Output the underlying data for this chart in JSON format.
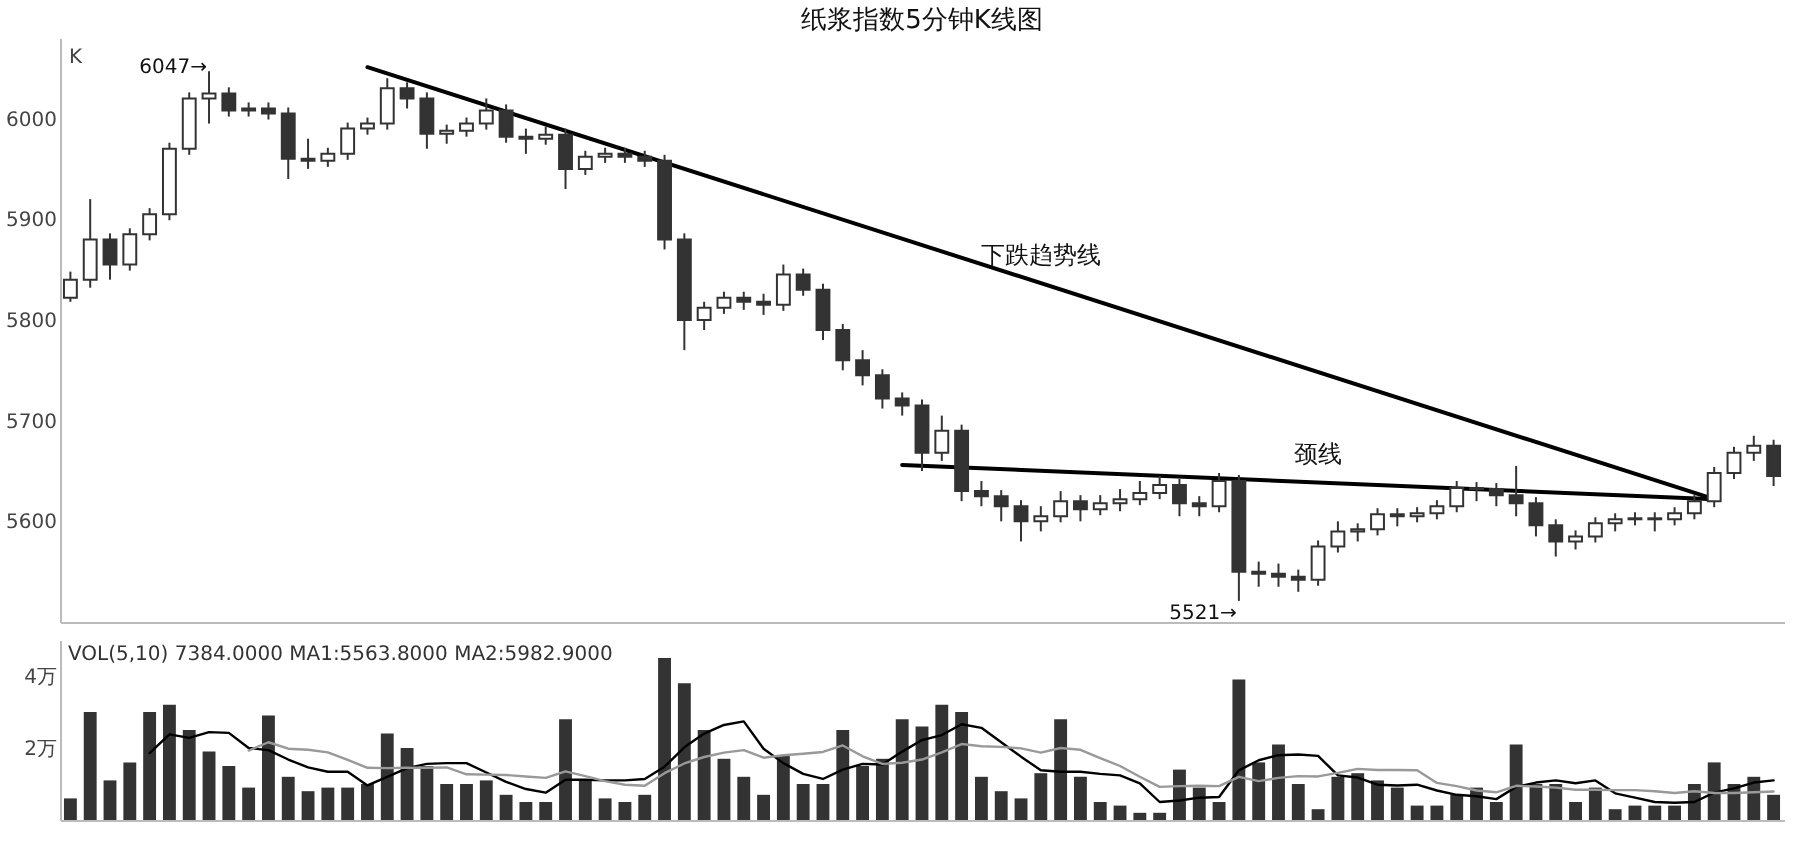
{
  "chart_data": [
    {
      "type": "candlestick",
      "title": "纸浆指数5分钟K线图",
      "ylabel": "K",
      "color": "#333333",
      "tick_labels": "y",
      "categories": [
        null,
        null,
        null,
        null,
        null,
        null,
        null,
        null,
        null,
        null,
        null,
        null,
        null,
        null,
        null,
        null,
        null,
        null,
        null,
        null,
        null,
        null,
        null,
        null,
        null,
        null,
        null,
        null,
        null,
        null,
        null,
        null,
        null,
        null,
        null,
        null,
        null,
        null,
        null,
        null,
        null,
        null,
        null,
        null,
        null,
        null,
        null,
        null,
        null,
        null,
        null,
        null,
        null,
        null,
        null,
        null,
        null,
        null,
        null,
        null,
        null,
        null,
        null,
        null,
        null,
        null,
        null,
        null,
        null,
        null,
        null,
        null,
        null,
        null,
        null,
        null,
        null,
        null,
        null,
        null,
        null,
        null,
        null,
        null,
        null,
        null,
        null
      ],
      "ylim": [
        5500,
        6080
      ],
      "yticks": [
        5600,
        5700,
        5800,
        5900,
        6000
      ],
      "ohlc": [
        [
          5822,
          5848,
          5818,
          5840
        ],
        [
          5840,
          5920,
          5832,
          5880
        ],
        [
          5880,
          5886,
          5840,
          5855
        ],
        [
          5855,
          5891,
          5849,
          5885
        ],
        [
          5885,
          5911,
          5879,
          5905
        ],
        [
          5905,
          5976,
          5899,
          5970
        ],
        [
          5970,
          6026,
          5964,
          6020
        ],
        [
          6020,
          6047,
          5995,
          6025
        ],
        [
          6025,
          6031,
          6002,
          6008
        ],
        [
          6008,
          6016,
          6002,
          6010
        ],
        [
          6010,
          6016,
          5999,
          6005
        ],
        [
          6005,
          6011,
          5940,
          5960
        ],
        [
          5960,
          5980,
          5950,
          5958
        ],
        [
          5958,
          5971,
          5952,
          5965
        ],
        [
          5965,
          5996,
          5959,
          5990
        ],
        [
          5990,
          6001,
          5984,
          5995
        ],
        [
          5995,
          6040,
          5989,
          6030
        ],
        [
          6030,
          6036,
          6010,
          6020
        ],
        [
          6020,
          6026,
          5970,
          5985
        ],
        [
          5985,
          5994,
          5975,
          5988
        ],
        [
          5988,
          6001,
          5982,
          5995
        ],
        [
          5995,
          6020,
          5989,
          6008
        ],
        [
          6008,
          6014,
          5976,
          5982
        ],
        [
          5982,
          5990,
          5965,
          5980
        ],
        [
          5980,
          5992,
          5974,
          5984
        ],
        [
          5984,
          5990,
          5930,
          5950
        ],
        [
          5950,
          5968,
          5944,
          5962
        ],
        [
          5962,
          5971,
          5956,
          5965
        ],
        [
          5965,
          5971,
          5956,
          5962
        ],
        [
          5962,
          5968,
          5952,
          5958
        ],
        [
          5958,
          5964,
          5870,
          5880
        ],
        [
          5880,
          5886,
          5770,
          5800
        ],
        [
          5800,
          5818,
          5790,
          5812
        ],
        [
          5812,
          5828,
          5806,
          5822
        ],
        [
          5822,
          5828,
          5810,
          5818
        ],
        [
          5818,
          5826,
          5805,
          5815
        ],
        [
          5815,
          5855,
          5809,
          5845
        ],
        [
          5845,
          5851,
          5824,
          5830
        ],
        [
          5830,
          5836,
          5780,
          5790
        ],
        [
          5790,
          5796,
          5750,
          5760
        ],
        [
          5760,
          5770,
          5735,
          5745
        ],
        [
          5745,
          5751,
          5712,
          5722
        ],
        [
          5722,
          5728,
          5705,
          5715
        ],
        [
          5715,
          5721,
          5650,
          5668
        ],
        [
          5668,
          5705,
          5660,
          5690
        ],
        [
          5690,
          5696,
          5620,
          5630
        ],
        [
          5630,
          5640,
          5615,
          5625
        ],
        [
          5625,
          5631,
          5600,
          5615
        ],
        [
          5615,
          5621,
          5580,
          5600
        ],
        [
          5600,
          5615,
          5590,
          5605
        ],
        [
          5605,
          5630,
          5599,
          5620
        ],
        [
          5620,
          5626,
          5600,
          5612
        ],
        [
          5612,
          5626,
          5606,
          5618
        ],
        [
          5618,
          5632,
          5610,
          5622
        ],
        [
          5622,
          5640,
          5616,
          5628
        ],
        [
          5628,
          5645,
          5622,
          5636
        ],
        [
          5636,
          5642,
          5605,
          5618
        ],
        [
          5618,
          5625,
          5605,
          5615
        ],
        [
          5615,
          5648,
          5609,
          5640
        ],
        [
          5640,
          5646,
          5521,
          5550
        ],
        [
          5550,
          5560,
          5535,
          5548
        ],
        [
          5548,
          5558,
          5535,
          5545
        ],
        [
          5545,
          5552,
          5530,
          5542
        ],
        [
          5542,
          5581,
          5536,
          5575
        ],
        [
          5575,
          5600,
          5569,
          5590
        ],
        [
          5590,
          5598,
          5580,
          5592
        ],
        [
          5592,
          5613,
          5586,
          5607
        ],
        [
          5607,
          5613,
          5595,
          5605
        ],
        [
          5605,
          5614,
          5599,
          5608
        ],
        [
          5608,
          5621,
          5602,
          5615
        ],
        [
          5615,
          5640,
          5609,
          5633
        ],
        [
          5633,
          5639,
          5620,
          5632
        ],
        [
          5632,
          5638,
          5615,
          5626
        ],
        [
          5626,
          5655,
          5605,
          5618
        ],
        [
          5618,
          5624,
          5585,
          5596
        ],
        [
          5596,
          5602,
          5565,
          5580
        ],
        [
          5580,
          5591,
          5572,
          5585
        ],
        [
          5585,
          5604,
          5579,
          5598
        ],
        [
          5598,
          5608,
          5590,
          5602
        ],
        [
          5602,
          5609,
          5596,
          5603
        ],
        [
          5603,
          5609,
          5590,
          5602
        ],
        [
          5602,
          5614,
          5596,
          5608
        ],
        [
          5608,
          5626,
          5602,
          5620
        ],
        [
          5620,
          5654,
          5614,
          5648
        ],
        [
          5648,
          5674,
          5642,
          5668
        ],
        [
          5668,
          5685,
          5660,
          5675
        ],
        [
          5675,
          5681,
          5635,
          5645
        ]
      ],
      "series": [
        {
          "name": "下跌趋势线",
          "type": "line",
          "color": "#000000",
          "values": [
            null,
            null,
            null,
            null,
            null,
            null,
            null,
            null,
            null,
            null,
            null,
            null,
            null,
            null,
            null,
            6051,
            null,
            null,
            null,
            null,
            null,
            null,
            null,
            null,
            null,
            null,
            null,
            null,
            null,
            null,
            null,
            null,
            null,
            null,
            null,
            null,
            null,
            null,
            null,
            null,
            null,
            null,
            null,
            null,
            null,
            null,
            null,
            null,
            null,
            null,
            null,
            null,
            null,
            null,
            null,
            null,
            null,
            null,
            null,
            null,
            null,
            null,
            null,
            null,
            null,
            null,
            null,
            null,
            null,
            null,
            null,
            null,
            null,
            null,
            null,
            null,
            null,
            null,
            null,
            null,
            null,
            null,
            null,
            5622,
            null,
            null,
            null
          ]
        },
        {
          "name": "颈线",
          "type": "line",
          "color": "#000000",
          "values": [
            null,
            null,
            null,
            null,
            null,
            null,
            null,
            null,
            null,
            null,
            null,
            null,
            null,
            null,
            null,
            null,
            null,
            null,
            null,
            null,
            null,
            null,
            null,
            null,
            null,
            null,
            null,
            null,
            null,
            null,
            null,
            null,
            null,
            null,
            null,
            null,
            null,
            null,
            null,
            null,
            null,
            null,
            5656,
            null,
            null,
            null,
            null,
            null,
            null,
            null,
            null,
            null,
            null,
            null,
            null,
            null,
            null,
            null,
            null,
            null,
            null,
            null,
            null,
            null,
            null,
            null,
            null,
            null,
            null,
            null,
            null,
            null,
            null,
            null,
            null,
            null,
            null,
            null,
            null,
            null,
            null,
            null,
            null,
            5622,
            null,
            null,
            null
          ]
        }
      ],
      "annotations": [
        "6047→",
        "5521→"
      ]
    },
    {
      "type": "bar",
      "tick_labels": "y",
      "categories": [
        null,
        null,
        null,
        null,
        null,
        null,
        null,
        null,
        null,
        null,
        null,
        null,
        null,
        null,
        null,
        null,
        null,
        null,
        null,
        null,
        null,
        null,
        null,
        null,
        null,
        null,
        null,
        null,
        null,
        null,
        null,
        null,
        null,
        null,
        null,
        null,
        null,
        null,
        null,
        null,
        null,
        null,
        null,
        null,
        null,
        null,
        null,
        null,
        null,
        null,
        null,
        null,
        null,
        null,
        null,
        null,
        null,
        null,
        null,
        null,
        null,
        null,
        null,
        null,
        null,
        null,
        null,
        null,
        null,
        null,
        null,
        null,
        null,
        null,
        null,
        null,
        null,
        null,
        null,
        null,
        null,
        null,
        null,
        null,
        null,
        null,
        null
      ],
      "ylim": [
        0,
        5
      ],
      "yticks": [
        {
          "value": 2,
          "label": "2万"
        },
        {
          "value": 4,
          "label": "4万"
        }
      ],
      "series": [
        {
          "type": "bar",
          "color": "#333333",
          "values": [
            0.6,
            3.0,
            1.1,
            1.6,
            3.0,
            3.2,
            2.5,
            1.9,
            1.5,
            0.9,
            2.9,
            1.2,
            0.8,
            0.9,
            0.9,
            1.0,
            2.4,
            2.0,
            1.5,
            1.0,
            1.0,
            1.1,
            0.7,
            0.5,
            0.5,
            2.8,
            1.1,
            0.6,
            0.5,
            0.7,
            4.5,
            3.8,
            2.5,
            1.7,
            1.2,
            0.7,
            1.8,
            1.0,
            1.0,
            2.5,
            1.5,
            1.7,
            2.8,
            2.6,
            3.2,
            3.0,
            1.2,
            0.8,
            0.6,
            1.3,
            2.8,
            1.2,
            0.5,
            0.4,
            0.2,
            0.2,
            1.4,
            0.9,
            0.5,
            3.9,
            1.6,
            2.1,
            1.0,
            0.3,
            1.2,
            1.3,
            1.1,
            0.9,
            0.4,
            0.4,
            0.7,
            0.9,
            0.5,
            2.1,
            1.0,
            1.0,
            0.5,
            0.9,
            0.3,
            0.4,
            0.4,
            0.4,
            1.0,
            1.6,
            1.0,
            1.2,
            0.7
          ]
        },
        {
          "type": "line",
          "color": "#000000",
          "values": [
            null,
            null,
            null,
            null,
            1.86,
            2.38,
            2.28,
            2.44,
            2.42,
            2.0,
            1.94,
            1.68,
            1.46,
            1.34,
            1.34,
            0.96,
            1.2,
            1.44,
            1.56,
            1.58,
            1.58,
            1.32,
            1.06,
            0.86,
            0.76,
            1.12,
            1.12,
            1.1,
            1.1,
            1.14,
            1.48,
            2.02,
            2.4,
            2.64,
            2.74,
            1.98,
            1.58,
            1.28,
            1.14,
            1.4,
            1.56,
            1.54,
            1.9,
            2.22,
            2.36,
            2.66,
            2.56,
            2.16,
            1.76,
            1.38,
            1.34,
            1.34,
            1.28,
            1.24,
            1.02,
            0.5,
            0.54,
            0.62,
            0.64,
            1.38,
            1.66,
            1.8,
            1.82,
            1.78,
            1.24,
            1.18,
            0.98,
            0.96,
            0.98,
            0.82,
            0.7,
            0.66,
            0.58,
            0.92,
            1.04,
            1.1,
            1.02,
            1.1,
            0.74,
            0.62,
            0.5,
            0.48,
            0.5,
            0.76,
            0.88,
            1.04,
            1.1
          ]
        },
        {
          "type": "line",
          "color": "#999999",
          "values": [
            null,
            null,
            null,
            null,
            null,
            null,
            null,
            null,
            null,
            1.93,
            2.16,
            1.98,
            1.95,
            1.88,
            1.67,
            1.45,
            1.44,
            1.45,
            1.45,
            1.46,
            1.27,
            1.26,
            1.25,
            1.21,
            1.17,
            1.35,
            1.22,
            1.08,
            0.98,
            0.95,
            1.3,
            1.57,
            1.75,
            1.87,
            1.94,
            1.73,
            1.8,
            1.84,
            1.89,
            2.07,
            1.77,
            1.56,
            1.59,
            1.68,
            1.88,
            2.11,
            2.05,
            2.03,
            1.99,
            1.87,
            2.0,
            1.95,
            1.72,
            1.5,
            1.2,
            0.92,
            0.94,
            0.95,
            0.94,
            1.2,
            1.08,
            1.17,
            1.22,
            1.21,
            1.31,
            1.42,
            1.39,
            1.39,
            1.38,
            1.03,
            0.94,
            0.82,
            0.77,
            0.95,
            0.93,
            0.9,
            0.84,
            0.84,
            0.83,
            0.83,
            0.8,
            0.75,
            0.8,
            0.75,
            0.75,
            0.77,
            0.79
          ]
        }
      ],
      "annotations": [
        "VOL(5,10) 7384.0000 MA1:5563.8000 MA2:5982.9000"
      ]
    }
  ]
}
